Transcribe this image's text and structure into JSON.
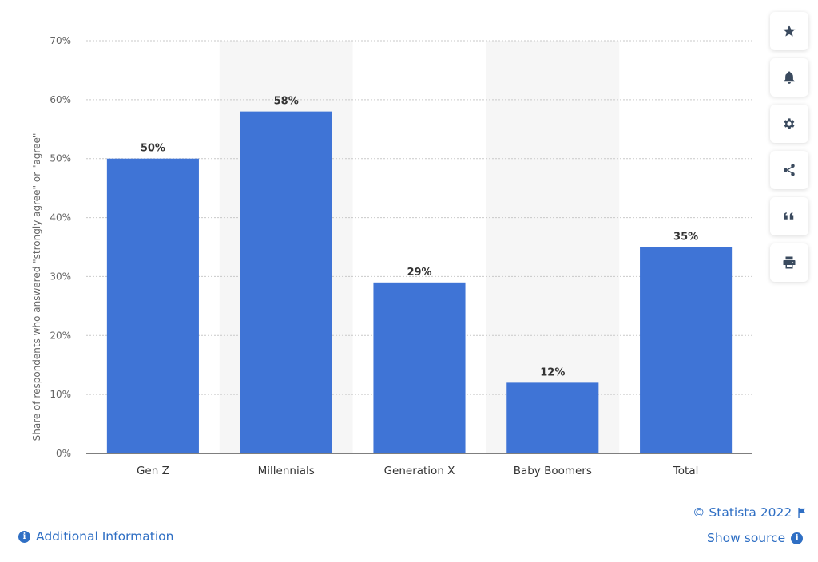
{
  "chart_data": {
    "type": "bar",
    "categories": [
      "Gen Z",
      "Millennials",
      "Generation X",
      "Baby Boomers",
      "Total"
    ],
    "values": [
      50,
      58,
      29,
      12,
      35
    ],
    "value_labels": [
      "50%",
      "58%",
      "29%",
      "12%",
      "35%"
    ],
    "ylabel": "Share of respondents who answered \"strongly agree\" or \"agree\"",
    "xlabel": "",
    "ylim": [
      0,
      70
    ],
    "yticks": [
      0,
      10,
      20,
      30,
      40,
      50,
      60,
      70
    ],
    "ytick_labels": [
      "0%",
      "10%",
      "20%",
      "30%",
      "40%",
      "50%",
      "60%",
      "70%"
    ],
    "grid": true,
    "bar_color": "#3f74d6",
    "alternate_band_color": "#f6f6f6"
  },
  "toolbar": {
    "buttons": [
      "star-icon",
      "bell-icon",
      "gear-icon",
      "share-icon",
      "quote-icon",
      "print-icon"
    ]
  },
  "footer": {
    "copyright": "© Statista 2022",
    "show_source": "Show source",
    "additional_info": "Additional Information"
  }
}
